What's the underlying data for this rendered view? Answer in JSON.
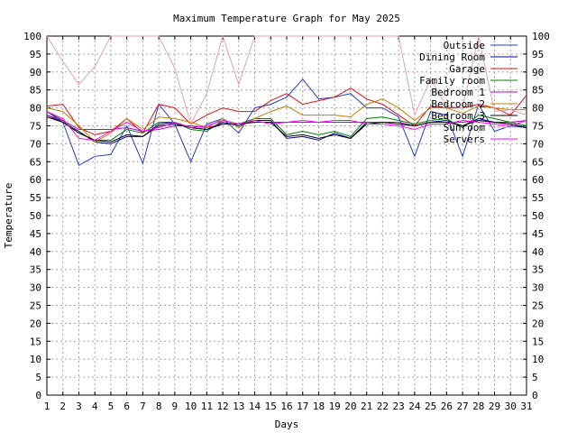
{
  "chart_data": {
    "type": "line",
    "title": "Maximum Temperature Graph for May 2025",
    "xlabel": "Days",
    "ylabel": "Temperature",
    "xlim": [
      1,
      31
    ],
    "ylim": [
      0,
      100
    ],
    "x_ticks": [
      1,
      2,
      3,
      4,
      5,
      6,
      7,
      8,
      9,
      10,
      11,
      12,
      13,
      14,
      15,
      16,
      17,
      18,
      19,
      20,
      21,
      22,
      23,
      24,
      25,
      26,
      27,
      28,
      29,
      30,
      31
    ],
    "y_ticks": [
      0,
      5,
      10,
      15,
      20,
      25,
      30,
      35,
      40,
      45,
      50,
      55,
      60,
      65,
      70,
      75,
      80,
      85,
      90,
      95,
      100
    ],
    "grid": true,
    "legend_position": "top-right",
    "x": [
      1,
      2,
      3,
      4,
      5,
      6,
      7,
      8,
      9,
      10,
      11,
      12,
      13,
      14,
      15,
      16,
      17,
      18,
      19,
      20,
      21,
      22,
      23,
      24,
      25,
      26,
      27,
      28,
      29,
      30,
      31
    ],
    "series": [
      {
        "name": "Outside",
        "color": "#1f3fd0",
        "values": [
          79,
          76,
          64,
          66.5,
          67,
          75,
          64.5,
          81,
          75.5,
          65,
          75.5,
          77,
          73,
          80,
          81,
          83,
          88,
          82.5,
          83,
          84,
          80,
          80,
          77.5,
          66.5,
          79,
          78,
          66.5,
          81,
          73.5,
          75,
          74.5
        ]
      },
      {
        "name": "Dining Room",
        "color": "#000090",
        "values": [
          78,
          76,
          73.5,
          70.5,
          70,
          72,
          72,
          75.5,
          76,
          74.5,
          74,
          76,
          75,
          76.5,
          76.5,
          71.5,
          72,
          71,
          73,
          71.5,
          76,
          76,
          76,
          75,
          76,
          76.5,
          75,
          77,
          76,
          75.5,
          74.5
        ]
      },
      {
        "name": "Garage",
        "color": "#e01010",
        "values": [
          80.5,
          81,
          74.5,
          72.5,
          73.5,
          77,
          73,
          81,
          80,
          75.5,
          78,
          80,
          79,
          79,
          82,
          84,
          81,
          82,
          83,
          85.5,
          82.5,
          81,
          78,
          75,
          80.5,
          80,
          80,
          81,
          80,
          78,
          83.5
        ]
      },
      {
        "name": "Family room",
        "color": "#008000",
        "values": [
          79,
          76.5,
          73,
          71,
          71,
          74,
          73,
          76,
          76,
          74,
          73.5,
          76.5,
          75.5,
          77,
          77,
          72.5,
          73.5,
          72.5,
          73.5,
          72,
          77,
          77.5,
          76.5,
          75.5,
          76.5,
          77,
          74.5,
          78,
          77,
          76,
          75
        ]
      },
      {
        "name": "Bedroom 1",
        "color": "#c000c0",
        "values": [
          78,
          76.5,
          74,
          74,
          74,
          74.5,
          73.5,
          74,
          75,
          75,
          74.5,
          75.5,
          75.5,
          76,
          76,
          76,
          76,
          76,
          76,
          76,
          76,
          76,
          76,
          75,
          76,
          76,
          76,
          76.5,
          76,
          76,
          76.5
        ]
      },
      {
        "name": "Bedroom 2",
        "color": "#c08000",
        "values": [
          80,
          79,
          75,
          70.5,
          73,
          77,
          74,
          77.5,
          77,
          76,
          74.5,
          77,
          74.5,
          77,
          79,
          80.5,
          78,
          78,
          78,
          77.5,
          81,
          82.5,
          80,
          76.5,
          80,
          80,
          78.5,
          80.5,
          80,
          79.5,
          79.5
        ]
      },
      {
        "name": "Bedroom 3",
        "color": "#000000",
        "values": [
          77.5,
          76,
          73,
          71,
          70.5,
          72.5,
          72,
          75,
          75.5,
          74.5,
          74,
          75.5,
          75.5,
          76,
          76,
          72,
          72.5,
          71.5,
          72.5,
          71.5,
          75.5,
          76,
          75.5,
          75,
          76,
          76,
          75,
          76.5,
          76,
          75.5,
          74.5
        ]
      },
      {
        "name": "Sunroom",
        "color": "#e8a0b0",
        "values": [
          100,
          93,
          86.5,
          91.5,
          100,
          100,
          100,
          100,
          91,
          75.5,
          84,
          100,
          86.5,
          100,
          100,
          100,
          100,
          100,
          100,
          100,
          100,
          100,
          100,
          78,
          88,
          80.5,
          80,
          100,
          79,
          79.5,
          78
        ]
      },
      {
        "name": "Servers",
        "color": "#ff00ff",
        "values": [
          79,
          77,
          71.5,
          71,
          73.5,
          76,
          73.5,
          74.5,
          76,
          74.5,
          75,
          76.5,
          75.5,
          76.5,
          75.5,
          76,
          76.5,
          76,
          76.5,
          76.5,
          75.5,
          75.5,
          75,
          74,
          75.5,
          75.5,
          76.5,
          76,
          75.5,
          75,
          76.5
        ]
      }
    ]
  }
}
